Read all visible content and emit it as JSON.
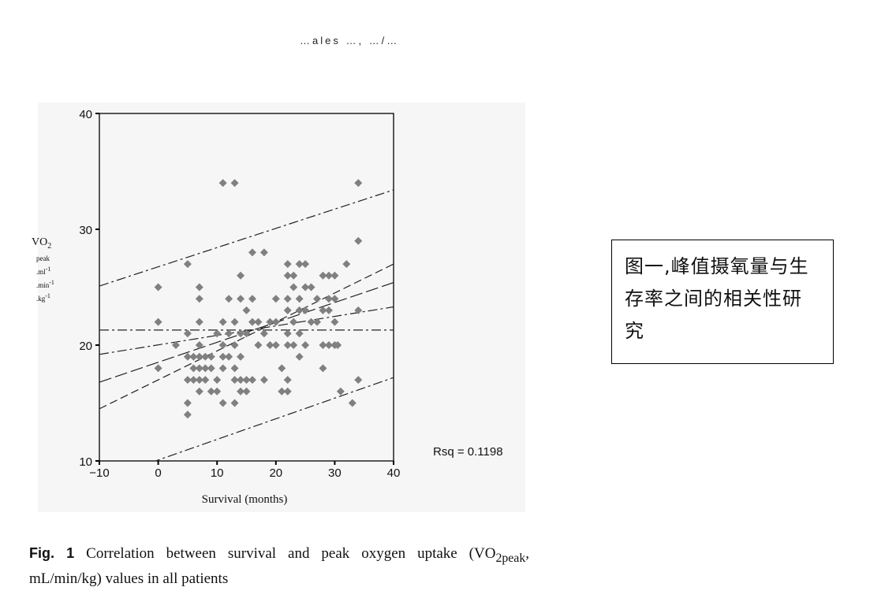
{
  "page": {
    "top_fragment": "…ales …, …/…",
    "caption_prefix": "Fig. 1",
    "caption_part1": "Correlation between survival and peak oxygen uptake (VO",
    "caption_sub": "2peak",
    "caption_part2": ", mL/min/kg) values in all patients",
    "annotation_box": "图一,峰值摄氧量与生存率之间的相关性研究"
  },
  "chart_data": {
    "type": "scatter",
    "title": "",
    "xlabel": "Survival (months)",
    "ylabel": {
      "main": "VO",
      "sub": "2",
      "units": [
        {
          "text": "peak",
          "sup": ""
        },
        {
          "text": ".ml",
          "sup": "-1"
        },
        {
          "text": ".min",
          "sup": "-1"
        },
        {
          "text": ".kg",
          "sup": "-1"
        }
      ]
    },
    "xlim": [
      -10,
      40
    ],
    "ylim": [
      10,
      40
    ],
    "xticks": [
      -10,
      0,
      10,
      20,
      30,
      40
    ],
    "xtick_labels": [
      "−10",
      "0",
      "10",
      "20",
      "30",
      "40"
    ],
    "yticks": [
      10,
      20,
      30,
      40
    ],
    "ytick_labels": [
      "10",
      "20",
      "30",
      "40"
    ],
    "grid": false,
    "annotation": "Rsq = 0.1198",
    "marker_color": "#808080",
    "line_color": "#222222",
    "points": [
      [
        0,
        25
      ],
      [
        0,
        22
      ],
      [
        0,
        18
      ],
      [
        3,
        20
      ],
      [
        5,
        27
      ],
      [
        5,
        21
      ],
      [
        5,
        19
      ],
      [
        5,
        17
      ],
      [
        5,
        15
      ],
      [
        5,
        14
      ],
      [
        6,
        19
      ],
      [
        6,
        18
      ],
      [
        6,
        17
      ],
      [
        7,
        25
      ],
      [
        7,
        24
      ],
      [
        7,
        22
      ],
      [
        7,
        20
      ],
      [
        7,
        19
      ],
      [
        7,
        18
      ],
      [
        7,
        17
      ],
      [
        7,
        16
      ],
      [
        8,
        19
      ],
      [
        8,
        18
      ],
      [
        8,
        17
      ],
      [
        9,
        19
      ],
      [
        9,
        18
      ],
      [
        9,
        16
      ],
      [
        10,
        21
      ],
      [
        10,
        17
      ],
      [
        10,
        16
      ],
      [
        11,
        34
      ],
      [
        11,
        22
      ],
      [
        11,
        20
      ],
      [
        11,
        19
      ],
      [
        11,
        18
      ],
      [
        11,
        15
      ],
      [
        12,
        24
      ],
      [
        12,
        21
      ],
      [
        12,
        19
      ],
      [
        13,
        34
      ],
      [
        13,
        22
      ],
      [
        13,
        20
      ],
      [
        13,
        18
      ],
      [
        13,
        17
      ],
      [
        13,
        15
      ],
      [
        14,
        26
      ],
      [
        14,
        24
      ],
      [
        14,
        21
      ],
      [
        14,
        19
      ],
      [
        14,
        17
      ],
      [
        14,
        16
      ],
      [
        15,
        23
      ],
      [
        15,
        21
      ],
      [
        15,
        17
      ],
      [
        15,
        16
      ],
      [
        16,
        28
      ],
      [
        16,
        24
      ],
      [
        16,
        22
      ],
      [
        16,
        17
      ],
      [
        17,
        22
      ],
      [
        17,
        20
      ],
      [
        18,
        28
      ],
      [
        18,
        21
      ],
      [
        18,
        17
      ],
      [
        19,
        22
      ],
      [
        19,
        20
      ],
      [
        20,
        24
      ],
      [
        20,
        22
      ],
      [
        20,
        20
      ],
      [
        21,
        18
      ],
      [
        21,
        16
      ],
      [
        22,
        27
      ],
      [
        22,
        26
      ],
      [
        22,
        24
      ],
      [
        22,
        23
      ],
      [
        22,
        21
      ],
      [
        22,
        20
      ],
      [
        22,
        17
      ],
      [
        22,
        16
      ],
      [
        23,
        26
      ],
      [
        23,
        25
      ],
      [
        23,
        22
      ],
      [
        23,
        20
      ],
      [
        24,
        27
      ],
      [
        24,
        24
      ],
      [
        24,
        23
      ],
      [
        24,
        21
      ],
      [
        24,
        19
      ],
      [
        25,
        27
      ],
      [
        25,
        25
      ],
      [
        25,
        23
      ],
      [
        25,
        20
      ],
      [
        26,
        25
      ],
      [
        26,
        22
      ],
      [
        27,
        24
      ],
      [
        27,
        22
      ],
      [
        28,
        26
      ],
      [
        28,
        23
      ],
      [
        28,
        20
      ],
      [
        28,
        18
      ],
      [
        29,
        26
      ],
      [
        29,
        24
      ],
      [
        29,
        23
      ],
      [
        29,
        20
      ],
      [
        30,
        26
      ],
      [
        30,
        24
      ],
      [
        30,
        22
      ],
      [
        30,
        20
      ],
      [
        30.5,
        20
      ],
      [
        31,
        16
      ],
      [
        32,
        27
      ],
      [
        33,
        15
      ],
      [
        34,
        34
      ],
      [
        34,
        29
      ],
      [
        34,
        23
      ],
      [
        34,
        17
      ]
    ],
    "series": [
      {
        "values": [
          [
            -10,
            16.8
          ],
          [
            40,
            25.4
          ]
        ],
        "style": "long-dash"
      },
      {
        "values": [
          [
            -10,
            14.5
          ],
          [
            40,
            27.0
          ]
        ],
        "style": "dash"
      },
      {
        "values": [
          [
            -10,
            19.2
          ],
          [
            40,
            23.3
          ]
        ],
        "style": "dash-dot"
      },
      {
        "values": [
          [
            -10,
            25.1
          ],
          [
            40,
            33.4
          ]
        ],
        "style": "dash-dot"
      },
      {
        "values": [
          [
            -10,
            8.3
          ],
          [
            40,
            17.2
          ]
        ],
        "style": "dash-dot"
      },
      {
        "values": [
          [
            -10,
            21.3
          ],
          [
            40,
            21.3
          ]
        ],
        "style": "dash-dot"
      }
    ]
  }
}
